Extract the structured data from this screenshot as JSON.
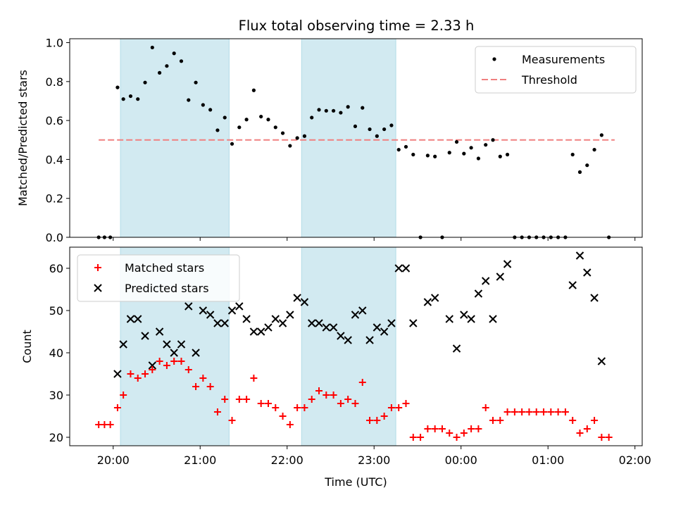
{
  "title": "Flux total observing time = 2.33 h",
  "chart_data": [
    {
      "type": "scatter",
      "ylabel": "Matched/Predicted stars",
      "ylim": [
        0,
        1.02
      ],
      "yticks": [
        0.0,
        0.2,
        0.4,
        0.6,
        0.8,
        1.0
      ],
      "ytick_labels": [
        "0.0",
        "0.2",
        "0.4",
        "0.6",
        "0.8",
        "1.0"
      ],
      "xticks": [
        "20:00",
        "21:00",
        "22:00",
        "23:00",
        "00:00",
        "01:00",
        "02:00"
      ],
      "shaded_regions": [
        [
          "20:05",
          "21:20"
        ],
        [
          "22:10",
          "23:15"
        ]
      ],
      "threshold": 0.5,
      "threshold_range": [
        "19:50",
        "01:46"
      ],
      "legend": {
        "position": "upper right",
        "entries": [
          "Measurements",
          "Threshold"
        ]
      },
      "colors": {
        "measurements": "#000000",
        "threshold": "#f08080",
        "shade": "#add8e6"
      },
      "series": [
        {
          "name": "Measurements",
          "points": [
            [
              "19:50",
              0.0
            ],
            [
              "19:54",
              0.0
            ],
            [
              "19:58",
              0.0
            ],
            [
              "20:03",
              0.77
            ],
            [
              "20:07",
              0.71
            ],
            [
              "20:12",
              0.725
            ],
            [
              "20:17",
              0.71
            ],
            [
              "20:22",
              0.795
            ],
            [
              "20:27",
              0.975
            ],
            [
              "20:32",
              0.845
            ],
            [
              "20:37",
              0.88
            ],
            [
              "20:42",
              0.945
            ],
            [
              "20:47",
              0.905
            ],
            [
              "20:52",
              0.705
            ],
            [
              "20:57",
              0.795
            ],
            [
              "21:02",
              0.68
            ],
            [
              "21:07",
              0.655
            ],
            [
              "21:12",
              0.55
            ],
            [
              "21:17",
              0.615
            ],
            [
              "21:22",
              0.48
            ],
            [
              "21:27",
              0.565
            ],
            [
              "21:32",
              0.605
            ],
            [
              "21:37",
              0.755
            ],
            [
              "21:42",
              0.62
            ],
            [
              "21:47",
              0.605
            ],
            [
              "21:52",
              0.565
            ],
            [
              "21:57",
              0.535
            ],
            [
              "22:02",
              0.47
            ],
            [
              "22:07",
              0.51
            ],
            [
              "22:12",
              0.52
            ],
            [
              "22:17",
              0.615
            ],
            [
              "22:22",
              0.655
            ],
            [
              "22:27",
              0.65
            ],
            [
              "22:32",
              0.65
            ],
            [
              "22:37",
              0.64
            ],
            [
              "22:42",
              0.67
            ],
            [
              "22:47",
              0.57
            ],
            [
              "22:52",
              0.665
            ],
            [
              "22:57",
              0.555
            ],
            [
              "23:02",
              0.52
            ],
            [
              "23:07",
              0.555
            ],
            [
              "23:12",
              0.575
            ],
            [
              "23:17",
              0.45
            ],
            [
              "23:22",
              0.465
            ],
            [
              "23:27",
              0.425
            ],
            [
              "23:32",
              0.0
            ],
            [
              "23:37",
              0.42
            ],
            [
              "23:42",
              0.415
            ],
            [
              "23:47",
              0.0
            ],
            [
              "23:52",
              0.435
            ],
            [
              "23:57",
              0.49
            ],
            [
              "00:02",
              0.43
            ],
            [
              "00:07",
              0.46
            ],
            [
              "00:12",
              0.405
            ],
            [
              "00:17",
              0.475
            ],
            [
              "00:22",
              0.5
            ],
            [
              "00:27",
              0.415
            ],
            [
              "00:32",
              0.425
            ],
            [
              "00:37",
              0.0
            ],
            [
              "00:42",
              0.0
            ],
            [
              "00:47",
              0.0
            ],
            [
              "00:52",
              0.0
            ],
            [
              "00:57",
              0.0
            ],
            [
              "01:02",
              0.0
            ],
            [
              "01:07",
              0.0
            ],
            [
              "01:12",
              0.0
            ],
            [
              "01:17",
              0.425
            ],
            [
              "01:22",
              0.335
            ],
            [
              "01:27",
              0.37
            ],
            [
              "01:32",
              0.45
            ],
            [
              "01:37",
              0.525
            ],
            [
              "01:42",
              0.0
            ]
          ]
        }
      ]
    },
    {
      "type": "scatter",
      "xlabel": "Time (UTC)",
      "ylabel": "Count",
      "ylim": [
        18,
        65
      ],
      "yticks": [
        20,
        30,
        40,
        50,
        60
      ],
      "ytick_labels": [
        "20",
        "30",
        "40",
        "50",
        "60"
      ],
      "xticks": [
        "20:00",
        "21:00",
        "22:00",
        "23:00",
        "00:00",
        "01:00",
        "02:00"
      ],
      "shaded_regions": [
        [
          "20:05",
          "21:20"
        ],
        [
          "22:10",
          "23:15"
        ]
      ],
      "legend": {
        "position": "upper left",
        "entries": [
          "Matched stars",
          "Predicted stars"
        ]
      },
      "colors": {
        "matched": "#ff0000",
        "predicted": "#000000",
        "shade": "#add8e6"
      },
      "series": [
        {
          "name": "Matched stars",
          "marker": "+",
          "points": [
            [
              "19:50",
              23
            ],
            [
              "19:54",
              23
            ],
            [
              "19:58",
              23
            ],
            [
              "20:03",
              27
            ],
            [
              "20:07",
              30
            ],
            [
              "20:12",
              35
            ],
            [
              "20:17",
              34
            ],
            [
              "20:22",
              35
            ],
            [
              "20:27",
              36
            ],
            [
              "20:32",
              38
            ],
            [
              "20:37",
              37
            ],
            [
              "20:42",
              38
            ],
            [
              "20:47",
              38
            ],
            [
              "20:52",
              36
            ],
            [
              "20:57",
              32
            ],
            [
              "21:02",
              34
            ],
            [
              "21:07",
              32
            ],
            [
              "21:12",
              26
            ],
            [
              "21:17",
              29
            ],
            [
              "21:22",
              24
            ],
            [
              "21:27",
              29
            ],
            [
              "21:32",
              29
            ],
            [
              "21:37",
              34
            ],
            [
              "21:42",
              28
            ],
            [
              "21:47",
              28
            ],
            [
              "21:52",
              27
            ],
            [
              "21:57",
              25
            ],
            [
              "22:02",
              23
            ],
            [
              "22:07",
              27
            ],
            [
              "22:12",
              27
            ],
            [
              "22:17",
              29
            ],
            [
              "22:22",
              31
            ],
            [
              "22:27",
              30
            ],
            [
              "22:32",
              30
            ],
            [
              "22:37",
              28
            ],
            [
              "22:42",
              29
            ],
            [
              "22:47",
              28
            ],
            [
              "22:52",
              33
            ],
            [
              "22:57",
              24
            ],
            [
              "23:02",
              24
            ],
            [
              "23:07",
              25
            ],
            [
              "23:12",
              27
            ],
            [
              "23:17",
              27
            ],
            [
              "23:22",
              28
            ],
            [
              "23:27",
              20
            ],
            [
              "23:32",
              20
            ],
            [
              "23:37",
              22
            ],
            [
              "23:42",
              22
            ],
            [
              "23:47",
              22
            ],
            [
              "23:52",
              21
            ],
            [
              "23:57",
              20
            ],
            [
              "00:02",
              21
            ],
            [
              "00:07",
              22
            ],
            [
              "00:12",
              22
            ],
            [
              "00:17",
              27
            ],
            [
              "00:22",
              24
            ],
            [
              "00:27",
              24
            ],
            [
              "00:32",
              26
            ],
            [
              "00:37",
              26
            ],
            [
              "00:42",
              26
            ],
            [
              "00:47",
              26
            ],
            [
              "00:52",
              26
            ],
            [
              "00:57",
              26
            ],
            [
              "01:02",
              26
            ],
            [
              "01:07",
              26
            ],
            [
              "01:12",
              26
            ],
            [
              "01:17",
              24
            ],
            [
              "01:22",
              21
            ],
            [
              "01:27",
              22
            ],
            [
              "01:32",
              24
            ],
            [
              "01:37",
              20
            ],
            [
              "01:42",
              20
            ]
          ]
        },
        {
          "name": "Predicted stars",
          "marker": "x",
          "points": [
            [
              "20:03",
              35
            ],
            [
              "20:07",
              42
            ],
            [
              "20:12",
              48
            ],
            [
              "20:17",
              48
            ],
            [
              "20:22",
              44
            ],
            [
              "20:27",
              37
            ],
            [
              "20:32",
              45
            ],
            [
              "20:37",
              42
            ],
            [
              "20:42",
              40
            ],
            [
              "20:47",
              42
            ],
            [
              "20:52",
              51
            ],
            [
              "20:57",
              40
            ],
            [
              "21:02",
              50
            ],
            [
              "21:07",
              49
            ],
            [
              "21:12",
              47
            ],
            [
              "21:17",
              47
            ],
            [
              "21:22",
              50
            ],
            [
              "21:27",
              51
            ],
            [
              "21:32",
              48
            ],
            [
              "21:37",
              45
            ],
            [
              "21:42",
              45
            ],
            [
              "21:47",
              46
            ],
            [
              "21:52",
              48
            ],
            [
              "21:57",
              47
            ],
            [
              "22:02",
              49
            ],
            [
              "22:07",
              53
            ],
            [
              "22:12",
              52
            ],
            [
              "22:17",
              47
            ],
            [
              "22:22",
              47
            ],
            [
              "22:27",
              46
            ],
            [
              "22:32",
              46
            ],
            [
              "22:37",
              44
            ],
            [
              "22:42",
              43
            ],
            [
              "22:47",
              49
            ],
            [
              "22:52",
              50
            ],
            [
              "22:57",
              43
            ],
            [
              "23:02",
              46
            ],
            [
              "23:07",
              45
            ],
            [
              "23:12",
              47
            ],
            [
              "23:17",
              60
            ],
            [
              "23:22",
              60
            ],
            [
              "23:27",
              47
            ],
            [
              "23:37",
              52
            ],
            [
              "23:42",
              53
            ],
            [
              "23:52",
              48
            ],
            [
              "23:57",
              41
            ],
            [
              "00:02",
              49
            ],
            [
              "00:07",
              48
            ],
            [
              "00:12",
              54
            ],
            [
              "00:17",
              57
            ],
            [
              "00:22",
              48
            ],
            [
              "00:27",
              58
            ],
            [
              "00:32",
              61
            ],
            [
              "01:17",
              56
            ],
            [
              "01:22",
              63
            ],
            [
              "01:27",
              59
            ],
            [
              "01:32",
              53
            ],
            [
              "01:37",
              38
            ]
          ]
        }
      ]
    }
  ]
}
